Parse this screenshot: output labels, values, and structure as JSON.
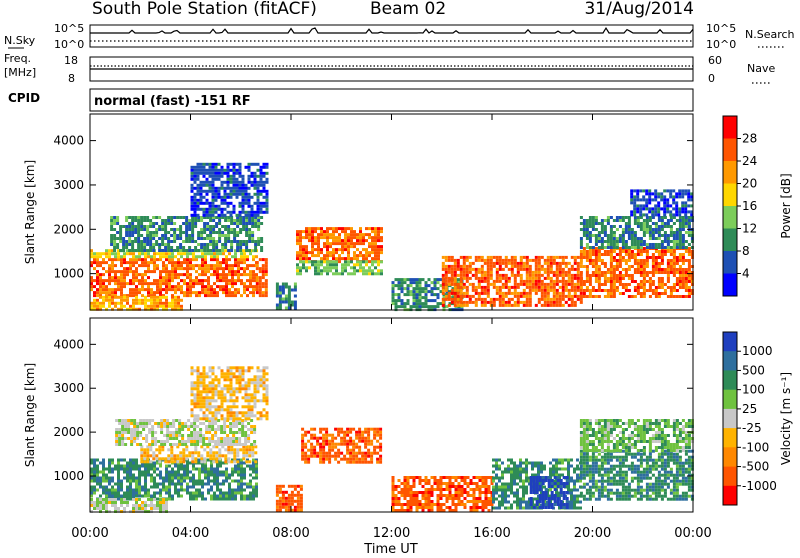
{
  "header": {
    "station": "South Pole Station (fitACF)",
    "beam": "Beam 02",
    "date": "31/Aug/2014",
    "cpid_label": "CPID",
    "cpid_value": "normal (fast) -151 RF",
    "time_axis_label": "Time UT"
  },
  "strips": [
    {
      "left_label": "N.Sky",
      "right_label": "N.Search",
      "left_ticks": [
        "10^5",
        "10^0"
      ],
      "right_ticks": [
        "10^5",
        "10^0"
      ]
    },
    {
      "left_label": "Freq.",
      "left_unit": "[MHz]",
      "right_label": "Nave",
      "left_ticks": [
        "18",
        "8"
      ],
      "right_ticks": [
        "60",
        "0"
      ]
    }
  ],
  "chart_data": [
    {
      "type": "heatmap",
      "panel": "power",
      "ylabel": "Slant Range [km]",
      "xlabel": "Time UT",
      "x_ticks": [
        "00:00",
        "04:00",
        "08:00",
        "12:00",
        "16:00",
        "20:00",
        "00:00"
      ],
      "x_range_hours": [
        0,
        24
      ],
      "y_ticks": [
        "1000",
        "2000",
        "3000",
        "4000"
      ],
      "y_range_km": [
        180,
        4600
      ],
      "colorbar": {
        "label": "Power [dB]",
        "ticks": [
          "4",
          "8",
          "12",
          "16",
          "20",
          "24",
          "28"
        ],
        "colors": [
          "#0000ff",
          "#1e50b4",
          "#2e8b57",
          "#7ccd5a",
          "#ffd700",
          "#ff9900",
          "#ff5500",
          "#ff0000"
        ]
      },
      "regions": [
        {
          "t0": 0.0,
          "t1": 6.6,
          "r0": 500,
          "r1": 1350,
          "level": 6
        },
        {
          "t0": 0.0,
          "t1": 6.6,
          "r0": 1350,
          "r1": 1550,
          "level": 4
        },
        {
          "t0": 0.0,
          "t1": 3.6,
          "r0": 200,
          "r1": 500,
          "level": 5
        },
        {
          "t0": 0.8,
          "t1": 6.8,
          "r0": 1550,
          "r1": 2300,
          "level": 2
        },
        {
          "t0": 4.0,
          "t1": 7.0,
          "r0": 2300,
          "r1": 3500,
          "level": 1
        },
        {
          "t0": 6.6,
          "t1": 7.0,
          "r0": 500,
          "r1": 1350,
          "level": 6
        },
        {
          "t0": 7.4,
          "t1": 8.2,
          "r0": 200,
          "r1": 800,
          "level": 2
        },
        {
          "t0": 8.2,
          "t1": 11.6,
          "r0": 1300,
          "r1": 2050,
          "level": 6
        },
        {
          "t0": 8.2,
          "t1": 11.6,
          "r0": 1000,
          "r1": 1300,
          "level": 3
        },
        {
          "t0": 12.0,
          "t1": 14.8,
          "r0": 200,
          "r1": 900,
          "level": 2
        },
        {
          "t0": 14.0,
          "t1": 19.5,
          "r0": 300,
          "r1": 1400,
          "level": 6
        },
        {
          "t0": 19.5,
          "t1": 24.0,
          "r0": 450,
          "r1": 1600,
          "level": 6
        },
        {
          "t0": 19.5,
          "t1": 24.0,
          "r0": 1600,
          "r1": 2300,
          "level": 2
        },
        {
          "t0": 21.5,
          "t1": 24.0,
          "r0": 2300,
          "r1": 2900,
          "level": 1
        }
      ]
    },
    {
      "type": "heatmap",
      "panel": "velocity",
      "ylabel": "Slant Range [km]",
      "xlabel": "Time UT",
      "x_ticks": [
        "00:00",
        "04:00",
        "08:00",
        "12:00",
        "16:00",
        "20:00",
        "00:00"
      ],
      "x_range_hours": [
        0,
        24
      ],
      "y_ticks": [
        "1000",
        "2000",
        "3000",
        "4000"
      ],
      "y_range_km": [
        180,
        4600
      ],
      "colorbar": {
        "label": "Velocity [m s⁻¹]",
        "ticks": [
          "1000",
          "500",
          "100",
          "25",
          "-25",
          "-100",
          "-500",
          "-1000"
        ],
        "colors": [
          "#1f3fbf",
          "#2e6f9e",
          "#2e8b57",
          "#6fc23f",
          "#c8c8c8",
          "#ffb300",
          "#ff8800",
          "#ff5500",
          "#ff0000"
        ]
      },
      "regions": [
        {
          "t0": 0.0,
          "t1": 6.6,
          "r0": 500,
          "r1": 1400,
          "level": 2
        },
        {
          "t0": 0.0,
          "t1": 3.0,
          "r0": 200,
          "r1": 500,
          "level": 4
        },
        {
          "t0": 2.0,
          "t1": 6.6,
          "r0": 1300,
          "r1": 1700,
          "level": 5
        },
        {
          "t0": 1.0,
          "t1": 6.6,
          "r0": 1700,
          "r1": 2300,
          "level": 4
        },
        {
          "t0": 4.0,
          "t1": 7.0,
          "r0": 2300,
          "r1": 3500,
          "level": 5
        },
        {
          "t0": 7.4,
          "t1": 8.4,
          "r0": 200,
          "r1": 800,
          "level": 7
        },
        {
          "t0": 8.4,
          "t1": 11.6,
          "r0": 1300,
          "r1": 2100,
          "level": 7
        },
        {
          "t0": 12.0,
          "t1": 16.0,
          "r0": 200,
          "r1": 1000,
          "level": 7
        },
        {
          "t0": 16.0,
          "t1": 19.5,
          "r0": 300,
          "r1": 1400,
          "level": 2
        },
        {
          "t0": 17.5,
          "t1": 19.0,
          "r0": 300,
          "r1": 1000,
          "level": 0
        },
        {
          "t0": 19.5,
          "t1": 24.0,
          "r0": 450,
          "r1": 1600,
          "level": 2
        },
        {
          "t0": 19.5,
          "t1": 24.0,
          "r0": 1600,
          "r1": 2300,
          "level": 3
        }
      ]
    }
  ]
}
